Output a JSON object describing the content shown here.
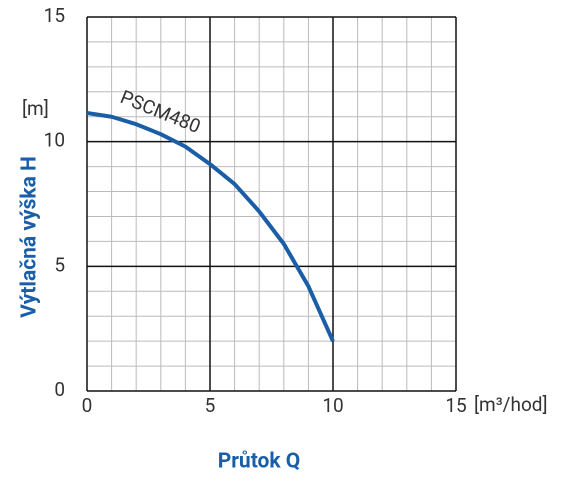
{
  "chart_data": {
    "type": "line",
    "x_label": "Průtok Q",
    "y_label": "Výtlačná výška H",
    "x_unit": "[m³/hod]",
    "y_unit": "[m]",
    "x": [
      0,
      1,
      2,
      3,
      4,
      5,
      6,
      7,
      8,
      9,
      10
    ],
    "series": [
      {
        "name": "PSCM480",
        "color": "#1a5ea8",
        "values": [
          11.15,
          11.0,
          10.7,
          10.3,
          9.8,
          9.1,
          8.3,
          7.2,
          5.9,
          4.2,
          2.0
        ]
      }
    ],
    "xlim": [
      0,
      15
    ],
    "ylim": [
      0,
      15
    ],
    "xticks": [
      0,
      5,
      10,
      15
    ],
    "yticks": [
      0,
      5,
      10,
      15
    ],
    "grid": true,
    "minor_grid": true
  }
}
